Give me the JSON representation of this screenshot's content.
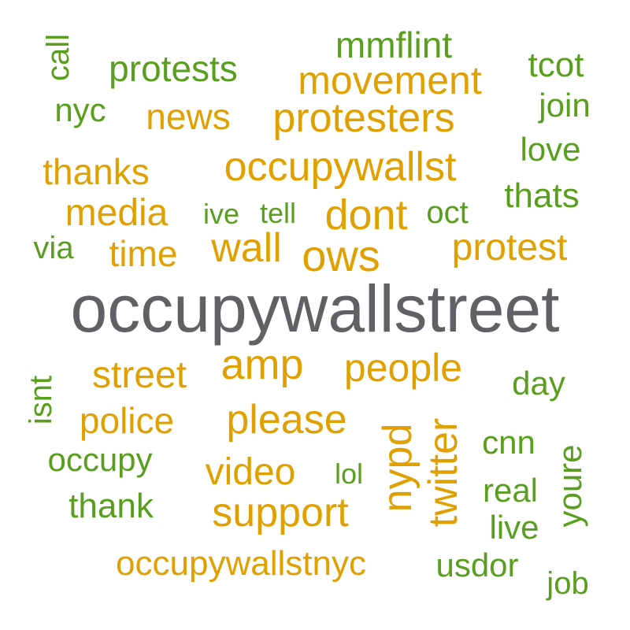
{
  "colors": {
    "background": "#ffffff",
    "green": "#5a9e1f",
    "orange": "#e0a000",
    "gray": "#5f6166"
  },
  "words": [
    {
      "text": "occupywallstreet",
      "weight": 100,
      "color": "gray"
    },
    {
      "text": "occupywallst",
      "weight": 60,
      "color": "orange"
    },
    {
      "text": "protesters",
      "weight": 60,
      "color": "orange"
    },
    {
      "text": "movement",
      "weight": 58,
      "color": "orange"
    },
    {
      "text": "people",
      "weight": 58,
      "color": "orange"
    },
    {
      "text": "ows",
      "weight": 62,
      "color": "orange"
    },
    {
      "text": "wall",
      "weight": 58,
      "color": "orange"
    },
    {
      "text": "dont",
      "weight": 60,
      "color": "orange"
    },
    {
      "text": "amp",
      "weight": 60,
      "color": "orange"
    },
    {
      "text": "please",
      "weight": 58,
      "color": "orange"
    },
    {
      "text": "support",
      "weight": 58,
      "color": "orange"
    },
    {
      "text": "protest",
      "weight": 56,
      "color": "orange"
    },
    {
      "text": "media",
      "weight": 55,
      "color": "orange"
    },
    {
      "text": "street",
      "weight": 55,
      "color": "orange"
    },
    {
      "text": "video",
      "weight": 55,
      "color": "orange"
    },
    {
      "text": "nypd",
      "weight": 58,
      "color": "orange"
    },
    {
      "text": "twitter",
      "weight": 58,
      "color": "orange"
    },
    {
      "text": "occupywallstnyc",
      "weight": 50,
      "color": "orange"
    },
    {
      "text": "thanks",
      "weight": 53,
      "color": "orange"
    },
    {
      "text": "time",
      "weight": 53,
      "color": "orange"
    },
    {
      "text": "news",
      "weight": 53,
      "color": "orange"
    },
    {
      "text": "police",
      "weight": 53,
      "color": "orange"
    },
    {
      "text": "protests",
      "weight": 53,
      "color": "green"
    },
    {
      "text": "mmflint",
      "weight": 53,
      "color": "green"
    },
    {
      "text": "tcot",
      "weight": 50,
      "color": "green"
    },
    {
      "text": "join",
      "weight": 48,
      "color": "green"
    },
    {
      "text": "nyc",
      "weight": 48,
      "color": "green"
    },
    {
      "text": "call",
      "weight": 45,
      "color": "green"
    },
    {
      "text": "love",
      "weight": 48,
      "color": "green"
    },
    {
      "text": "thats",
      "weight": 50,
      "color": "green"
    },
    {
      "text": "ive",
      "weight": 42,
      "color": "green"
    },
    {
      "text": "tell",
      "weight": 42,
      "color": "green"
    },
    {
      "text": "oct",
      "weight": 45,
      "color": "green"
    },
    {
      "text": "via",
      "weight": 45,
      "color": "green"
    },
    {
      "text": "day",
      "weight": 48,
      "color": "green"
    },
    {
      "text": "isnt",
      "weight": 45,
      "color": "green"
    },
    {
      "text": "occupy",
      "weight": 48,
      "color": "green"
    },
    {
      "text": "cnn",
      "weight": 48,
      "color": "green"
    },
    {
      "text": "youre",
      "weight": 48,
      "color": "green"
    },
    {
      "text": "lol",
      "weight": 42,
      "color": "green"
    },
    {
      "text": "real",
      "weight": 48,
      "color": "green"
    },
    {
      "text": "thank",
      "weight": 50,
      "color": "green"
    },
    {
      "text": "live",
      "weight": 48,
      "color": "green"
    },
    {
      "text": "usdor",
      "weight": 48,
      "color": "green"
    },
    {
      "text": "job",
      "weight": 45,
      "color": "green"
    }
  ]
}
